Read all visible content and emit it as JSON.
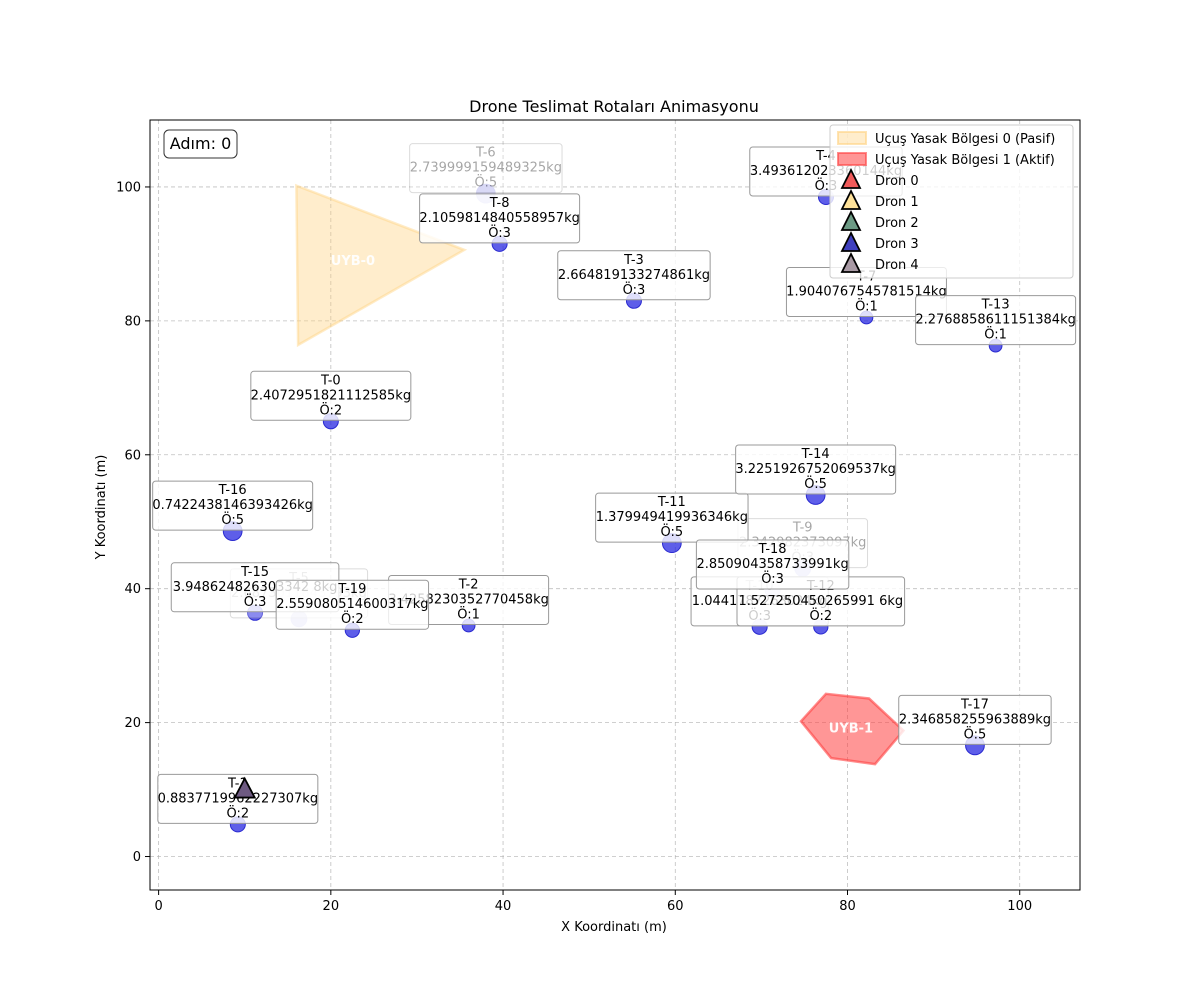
{
  "chart_data": {
    "type": "scatter",
    "title": "Drone Teslimat Rotaları Animasyonu",
    "xlabel": "X Koordinatı (m)",
    "ylabel": "Y Koordinatı (m)",
    "xlim": [
      -1,
      107
    ],
    "ylim": [
      -5,
      110
    ],
    "xticks": [
      0,
      20,
      40,
      60,
      80,
      100
    ],
    "yticks": [
      0,
      20,
      40,
      60,
      80,
      100
    ],
    "grid": true,
    "step_label": "Adım: 0",
    "deliveries": [
      {
        "id": "T-0",
        "x": 20.0,
        "y": 65.0,
        "weight": "2.4072951821112585kg",
        "priority": "Ö:2",
        "size": 1.0,
        "faded": false
      },
      {
        "id": "T-1",
        "x": 9.2,
        "y": 4.8,
        "weight": "0.8837719962227307kg",
        "priority": "Ö:2",
        "size": 1.0,
        "faded": false
      },
      {
        "id": "T-2",
        "x": 36.0,
        "y": 34.5,
        "weight": "3.4258230352770458kg",
        "priority": "Ö:1",
        "size": 0.85,
        "faded": false
      },
      {
        "id": "T-3",
        "x": 55.2,
        "y": 83.0,
        "weight": "2.664819133274861kg",
        "priority": "Ö:3",
        "size": 1.0,
        "faded": false
      },
      {
        "id": "T-4",
        "x": 77.5,
        "y": 98.5,
        "weight": "3.493612023360144kg",
        "priority": "Ö:3",
        "size": 1.0,
        "faded": false
      },
      {
        "id": "T-5",
        "x": 16.3,
        "y": 35.5,
        "weight": "2.6873011843793kg",
        "priority": "Ö:4",
        "size": 1.05,
        "faded": true
      },
      {
        "id": "T-6",
        "x": 38.0,
        "y": 99.0,
        "weight": "2.739999159489325kg",
        "priority": "Ö:5",
        "size": 1.25,
        "faded": true
      },
      {
        "id": "T-7",
        "x": 82.2,
        "y": 80.5,
        "weight": "1.9040767545781514kg",
        "priority": "Ö:1",
        "size": 0.85,
        "faded": false
      },
      {
        "id": "T-8",
        "x": 39.6,
        "y": 91.5,
        "weight": "2.1059814840558957kg",
        "priority": "Ö:3",
        "size": 1.0,
        "faded": false
      },
      {
        "id": "T-9",
        "x": 74.8,
        "y": 43.0,
        "weight": "2.342982373097kg",
        "priority": "Ö:3",
        "size": 1.05,
        "faded": true
      },
      {
        "id": "T-10",
        "x": 69.8,
        "y": 34.3,
        "weight": "1.0441787263024kg",
        "priority": "Ö:3",
        "size": 1.0,
        "faded": false
      },
      {
        "id": "T-11",
        "x": 59.6,
        "y": 46.8,
        "weight": "1.379949419936346kg",
        "priority": "Ö:5",
        "size": 1.25,
        "faded": false
      },
      {
        "id": "T-12",
        "x": 76.9,
        "y": 34.3,
        "weight": "1.527250450265991 6kg",
        "priority": "Ö:2",
        "size": 0.95,
        "faded": false
      },
      {
        "id": "T-13",
        "x": 97.2,
        "y": 76.3,
        "weight": "2.2768858611151384kg",
        "priority": "Ö:1",
        "size": 0.85,
        "faded": false
      },
      {
        "id": "T-14",
        "x": 76.3,
        "y": 54.0,
        "weight": "3.2251926752069537kg",
        "priority": "Ö:5",
        "size": 1.25,
        "faded": false
      },
      {
        "id": "T-15",
        "x": 11.2,
        "y": 36.4,
        "weight": "3.948624826303342 8kg",
        "priority": "Ö:3",
        "size": 1.0,
        "faded": false
      },
      {
        "id": "T-16",
        "x": 8.6,
        "y": 48.6,
        "weight": "0.7422438146393426kg",
        "priority": "Ö:5",
        "size": 1.25,
        "faded": false
      },
      {
        "id": "T-17",
        "x": 94.8,
        "y": 16.6,
        "weight": "2.346858255963889kg",
        "priority": "Ö:5",
        "size": 1.25,
        "faded": false
      },
      {
        "id": "T-18",
        "x": 71.3,
        "y": 39.8,
        "weight": "2.850904358733991kg",
        "priority": "Ö:3",
        "size": 1.0,
        "faded": false
      },
      {
        "id": "T-19",
        "x": 22.5,
        "y": 33.8,
        "weight": "2.559080514600317kg",
        "priority": "Ö:2",
        "size": 0.95,
        "faded": false
      }
    ],
    "zones": [
      {
        "label": "UYB-0",
        "legend": "Uçuş Yasak Bölgesi 0 (Pasif)",
        "active": false,
        "color": "#ffd280",
        "points": [
          [
            16.0,
            100.2
          ],
          [
            35.5,
            90.6
          ],
          [
            16.2,
            76.4
          ]
        ]
      },
      {
        "label": "UYB-1",
        "legend": "Uçuş Yasak Bölgesi 1 (Aktif)",
        "active": true,
        "color": "#ff4040",
        "points": [
          [
            77.5,
            24.3
          ],
          [
            82.5,
            23.6
          ],
          [
            86.5,
            18.8
          ],
          [
            83.2,
            13.8
          ],
          [
            78.1,
            14.7
          ],
          [
            74.6,
            20.2
          ]
        ]
      }
    ],
    "drones": [
      {
        "name": "Dron 0",
        "color": "#f05a5a"
      },
      {
        "name": "Dron 1",
        "color": "#ffe29a"
      },
      {
        "name": "Dron 2",
        "color": "#6c9a84"
      },
      {
        "name": "Dron 3",
        "color": "#3f3fbe"
      },
      {
        "name": "Dron 4",
        "color": "#a99aa5"
      }
    ],
    "drone_positions": [
      {
        "x": 10.0,
        "y": 10.0,
        "color": "#6e5a82"
      }
    ],
    "colors": {
      "delivery": "#2020e0",
      "grid": "#b0b0b0"
    }
  }
}
